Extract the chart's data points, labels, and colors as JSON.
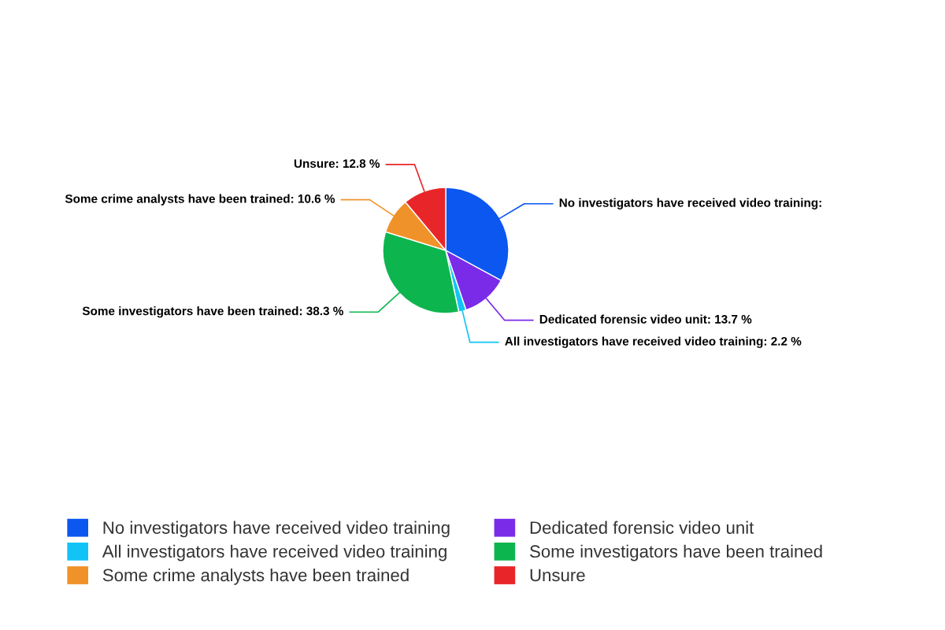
{
  "chart_data": {
    "type": "pie",
    "categories": [
      "No investigators have received video training",
      "Dedicated forensic video unit",
      "All investigators have received video training",
      "Some investigators have been trained",
      "Some crime analysts have been trained",
      "Unsure"
    ],
    "values": [
      38.1,
      13.7,
      2.2,
      38.3,
      10.6,
      12.8
    ],
    "value_labels": [
      "No investigators have received video training:",
      "Dedicated forensic video unit: 13.7 %",
      "All investigators have received video training: 2.2 %",
      "Some investigators have been trained: 38.3 %",
      "Some crime analysts have been trained: 10.6 %",
      "Unsure: 12.8 %"
    ],
    "colors": [
      "#0b57f0",
      "#7a2be8",
      "#12c4f5",
      "#0db54f",
      "#f0922a",
      "#e8262a"
    ],
    "legend": "bottom"
  }
}
